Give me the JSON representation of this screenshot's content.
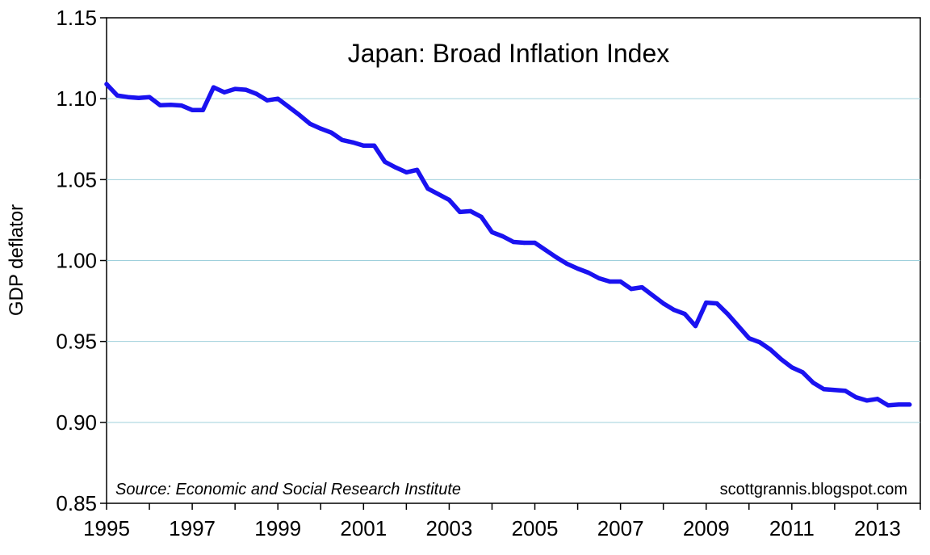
{
  "chart_data": {
    "type": "line",
    "title": "Japan: Broad Inflation Index",
    "xlabel": "",
    "ylabel": "GDP deflator",
    "xlim": [
      1995,
      2014
    ],
    "ylim": [
      0.85,
      1.15
    ],
    "x_tick_labels": [
      "1995",
      "1997",
      "1999",
      "2001",
      "2003",
      "2005",
      "2007",
      "2009",
      "2011",
      "2013"
    ],
    "x_tick_values": [
      1995,
      1997,
      1999,
      2001,
      2003,
      2005,
      2007,
      2009,
      2011,
      2013
    ],
    "y_tick_labels": [
      "0.85",
      "0.90",
      "0.95",
      "1.00",
      "1.05",
      "1.10",
      "1.15"
    ],
    "y_tick_values": [
      0.85,
      0.9,
      0.95,
      1.0,
      1.05,
      1.1,
      1.15
    ],
    "grid": "horizontal",
    "source_note": "Source:  Economic and Social Research Institute",
    "credit": "scottgrannis.blogspot.com",
    "series": [
      {
        "color": "#1a12f0",
        "points": [
          [
            1995.0,
            1.109
          ],
          [
            1995.25,
            1.102
          ],
          [
            1995.5,
            1.101
          ],
          [
            1995.75,
            1.1005
          ],
          [
            1996.0,
            1.101
          ],
          [
            1996.25,
            1.096
          ],
          [
            1996.5,
            1.0962
          ],
          [
            1996.75,
            1.0958
          ],
          [
            1997.0,
            1.093
          ],
          [
            1997.25,
            1.093
          ],
          [
            1997.5,
            1.107
          ],
          [
            1997.75,
            1.104
          ],
          [
            1998.0,
            1.106
          ],
          [
            1998.25,
            1.1055
          ],
          [
            1998.5,
            1.103
          ],
          [
            1998.75,
            1.099
          ],
          [
            1999.0,
            1.1
          ],
          [
            1999.25,
            1.095
          ],
          [
            1999.5,
            1.09
          ],
          [
            1999.75,
            1.0845
          ],
          [
            2000.0,
            1.0815
          ],
          [
            2000.25,
            1.079
          ],
          [
            2000.5,
            1.0745
          ],
          [
            2000.75,
            1.073
          ],
          [
            2001.0,
            1.071
          ],
          [
            2001.25,
            1.071
          ],
          [
            2001.5,
            1.061
          ],
          [
            2001.75,
            1.0575
          ],
          [
            2002.0,
            1.0545
          ],
          [
            2002.25,
            1.056
          ],
          [
            2002.5,
            1.0445
          ],
          [
            2002.75,
            1.041
          ],
          [
            2003.0,
            1.0375
          ],
          [
            2003.25,
            1.03
          ],
          [
            2003.5,
            1.0305
          ],
          [
            2003.75,
            1.027
          ],
          [
            2004.0,
            1.0175
          ],
          [
            2004.25,
            1.015
          ],
          [
            2004.5,
            1.0115
          ],
          [
            2004.75,
            1.011
          ],
          [
            2005.0,
            1.011
          ],
          [
            2005.25,
            1.0065
          ],
          [
            2005.5,
            1.002
          ],
          [
            2005.75,
            0.998
          ],
          [
            2006.0,
            0.995
          ],
          [
            2006.25,
            0.9925
          ],
          [
            2006.5,
            0.989
          ],
          [
            2006.75,
            0.987
          ],
          [
            2007.0,
            0.987
          ],
          [
            2007.25,
            0.9825
          ],
          [
            2007.5,
            0.9835
          ],
          [
            2007.75,
            0.9785
          ],
          [
            2008.0,
            0.9735
          ],
          [
            2008.25,
            0.9695
          ],
          [
            2008.5,
            0.967
          ],
          [
            2008.75,
            0.9595
          ],
          [
            2009.0,
            0.974
          ],
          [
            2009.25,
            0.9735
          ],
          [
            2009.5,
            0.967
          ],
          [
            2009.75,
            0.9595
          ],
          [
            2010.0,
            0.952
          ],
          [
            2010.25,
            0.9495
          ],
          [
            2010.5,
            0.945
          ],
          [
            2010.75,
            0.939
          ],
          [
            2011.0,
            0.934
          ],
          [
            2011.25,
            0.931
          ],
          [
            2011.5,
            0.9245
          ],
          [
            2011.75,
            0.9205
          ],
          [
            2012.0,
            0.92
          ],
          [
            2012.25,
            0.9195
          ],
          [
            2012.5,
            0.9155
          ],
          [
            2012.75,
            0.9135
          ],
          [
            2013.0,
            0.9145
          ],
          [
            2013.25,
            0.9105
          ],
          [
            2013.5,
            0.911
          ],
          [
            2013.75,
            0.911
          ]
        ]
      }
    ]
  }
}
